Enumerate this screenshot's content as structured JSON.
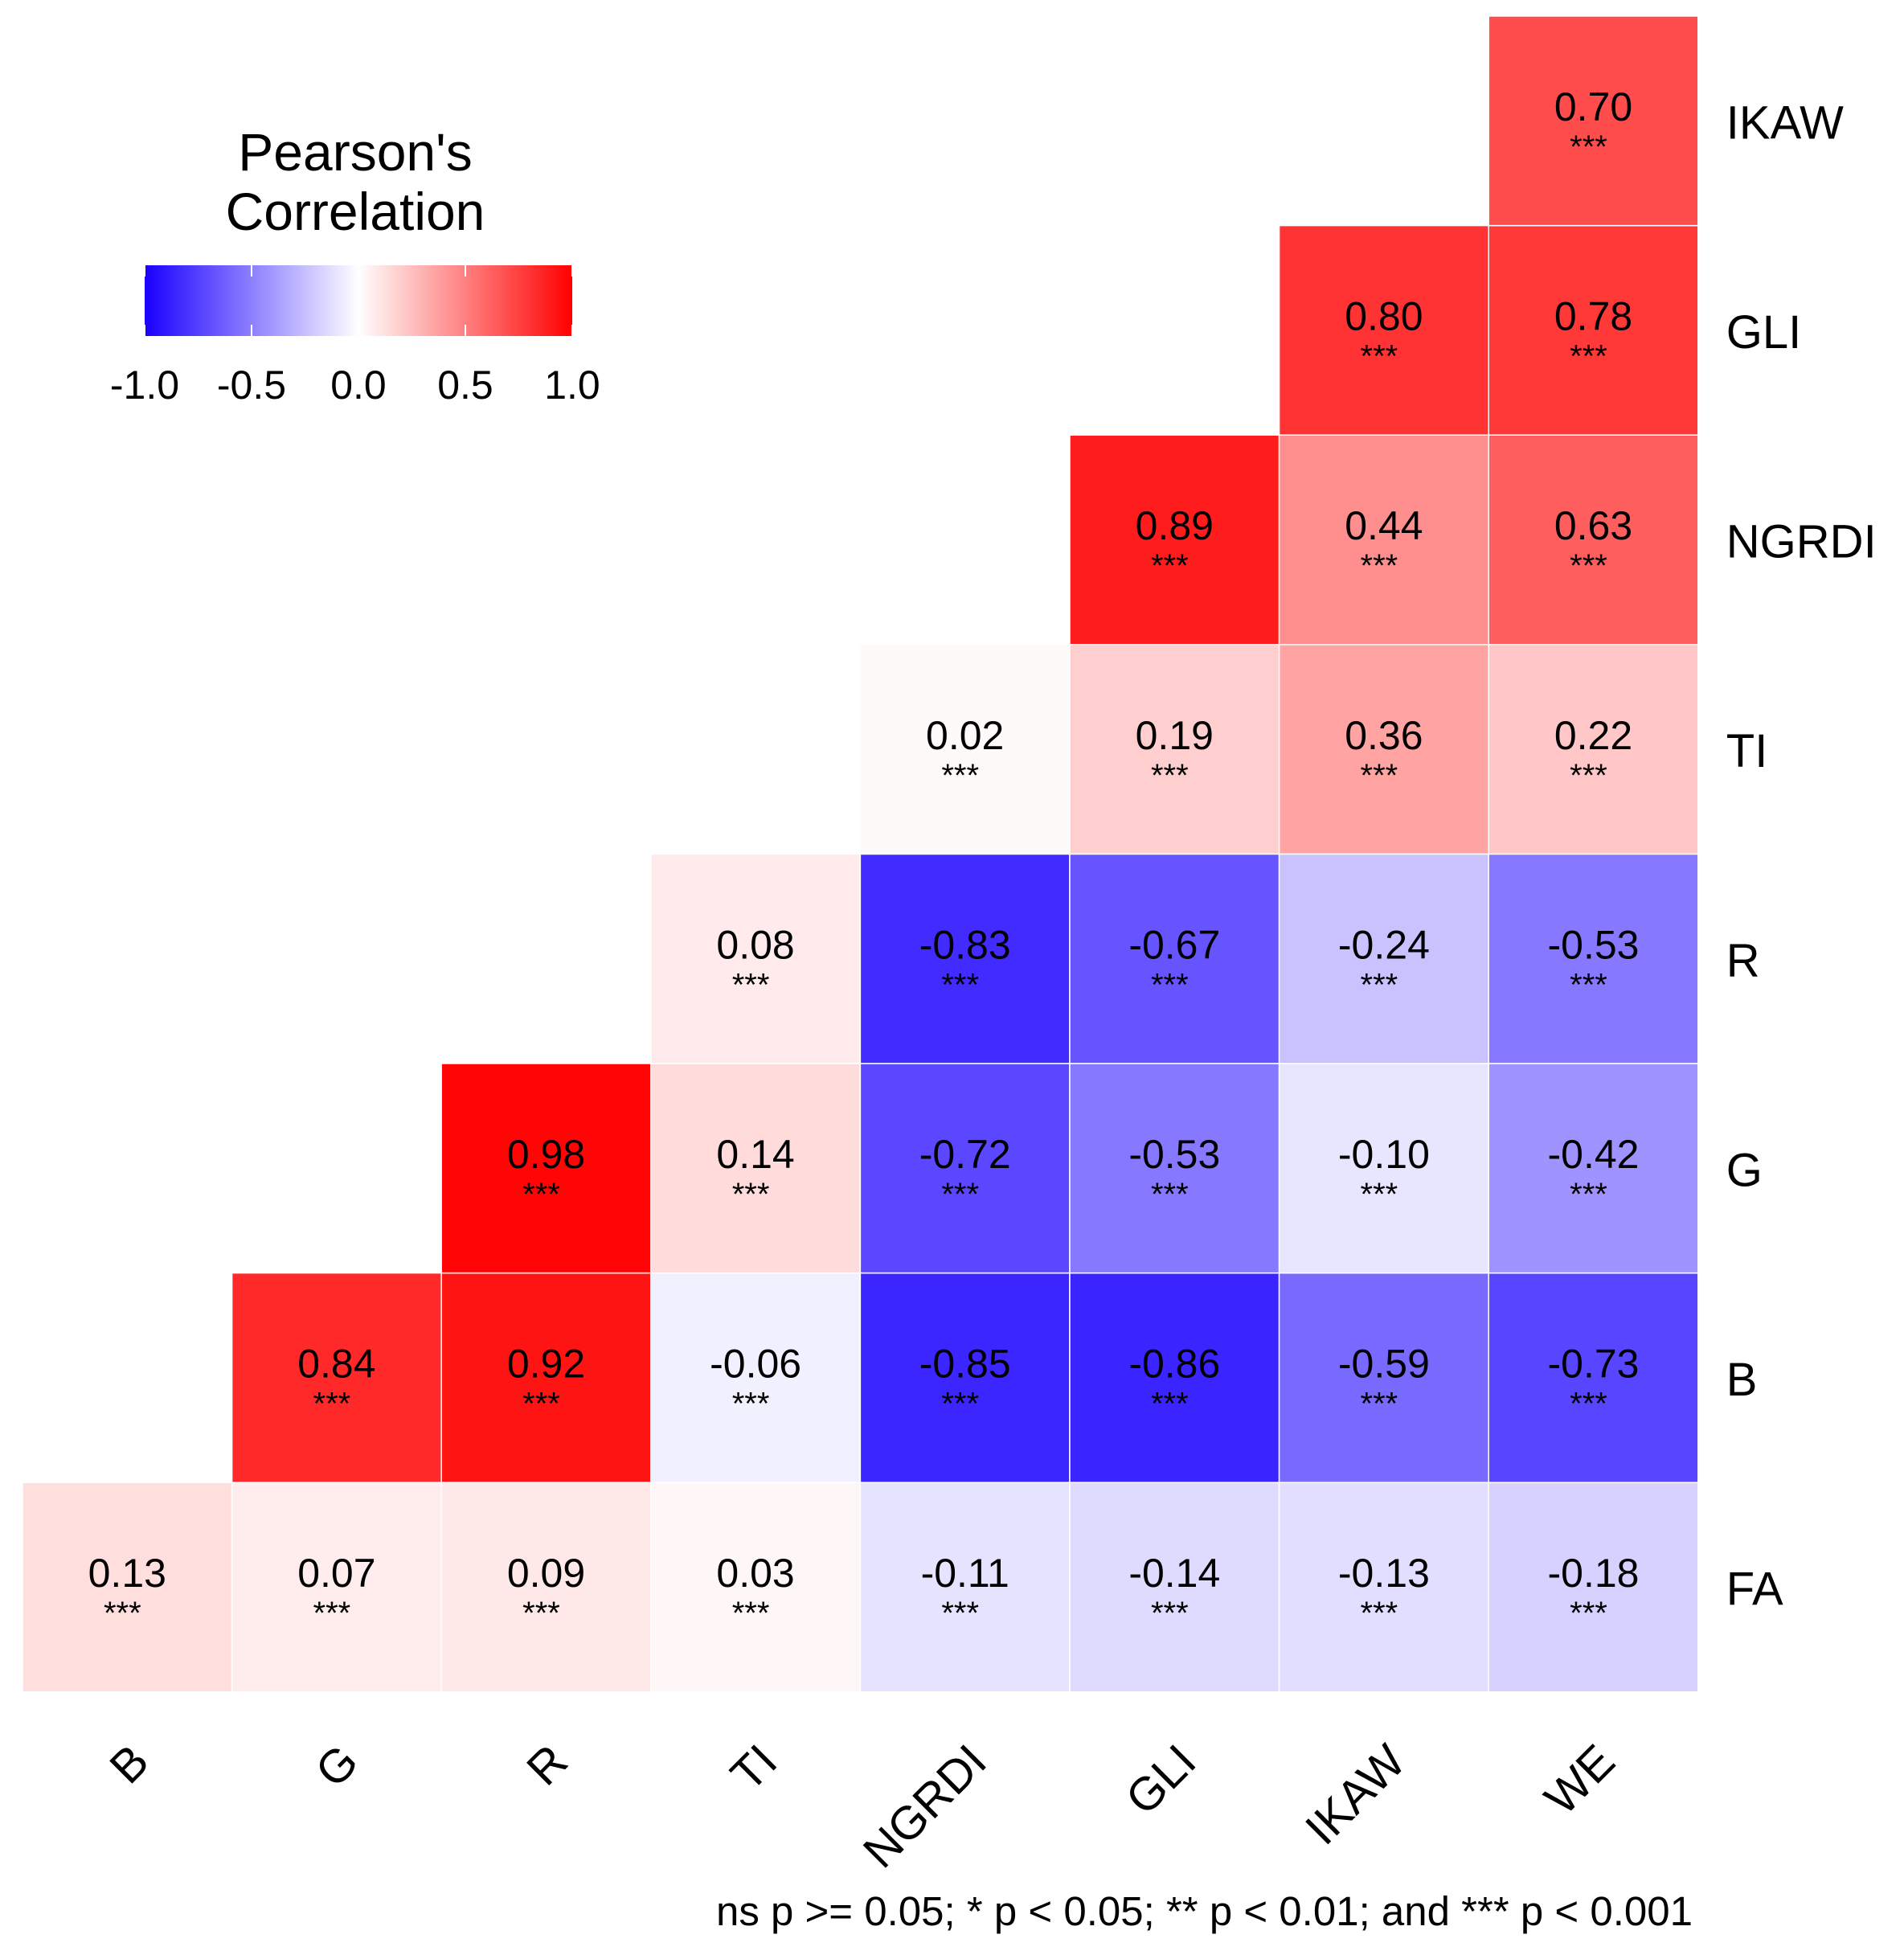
{
  "chart_data": {
    "type": "heatmap",
    "subtype": "lower-triangular correlation matrix",
    "x_labels": [
      "B",
      "G",
      "R",
      "TI",
      "NGRDI",
      "GLI",
      "IKAW",
      "WE"
    ],
    "y_labels": [
      "FA",
      "B",
      "G",
      "R",
      "TI",
      "NGRDI",
      "GLI",
      "IKAW"
    ],
    "cells": [
      {
        "x": "B",
        "y": "FA",
        "value": 0.13,
        "label": "0.13",
        "sig": "***"
      },
      {
        "x": "G",
        "y": "FA",
        "value": 0.07,
        "label": "0.07",
        "sig": "***"
      },
      {
        "x": "R",
        "y": "FA",
        "value": 0.09,
        "label": "0.09",
        "sig": "***"
      },
      {
        "x": "TI",
        "y": "FA",
        "value": 0.03,
        "label": "0.03",
        "sig": "***"
      },
      {
        "x": "NGRDI",
        "y": "FA",
        "value": -0.11,
        "label": "-0.11",
        "sig": "***"
      },
      {
        "x": "GLI",
        "y": "FA",
        "value": -0.14,
        "label": "-0.14",
        "sig": "***"
      },
      {
        "x": "IKAW",
        "y": "FA",
        "value": -0.13,
        "label": "-0.13",
        "sig": "***"
      },
      {
        "x": "WE",
        "y": "FA",
        "value": -0.18,
        "label": "-0.18",
        "sig": "***"
      },
      {
        "x": "G",
        "y": "B",
        "value": 0.84,
        "label": "0.84",
        "sig": "***"
      },
      {
        "x": "R",
        "y": "B",
        "value": 0.92,
        "label": "0.92",
        "sig": "***"
      },
      {
        "x": "TI",
        "y": "B",
        "value": -0.06,
        "label": "-0.06",
        "sig": "***"
      },
      {
        "x": "NGRDI",
        "y": "B",
        "value": -0.85,
        "label": "-0.85",
        "sig": "***"
      },
      {
        "x": "GLI",
        "y": "B",
        "value": -0.86,
        "label": "-0.86",
        "sig": "***"
      },
      {
        "x": "IKAW",
        "y": "B",
        "value": -0.59,
        "label": "-0.59",
        "sig": "***"
      },
      {
        "x": "WE",
        "y": "B",
        "value": -0.73,
        "label": "-0.73",
        "sig": "***"
      },
      {
        "x": "R",
        "y": "G",
        "value": 0.98,
        "label": "0.98",
        "sig": "***"
      },
      {
        "x": "TI",
        "y": "G",
        "value": 0.14,
        "label": "0.14",
        "sig": "***"
      },
      {
        "x": "NGRDI",
        "y": "G",
        "value": -0.72,
        "label": "-0.72",
        "sig": "***"
      },
      {
        "x": "GLI",
        "y": "G",
        "value": -0.53,
        "label": "-0.53",
        "sig": "***"
      },
      {
        "x": "IKAW",
        "y": "G",
        "value": -0.1,
        "label": "-0.10",
        "sig": "***"
      },
      {
        "x": "WE",
        "y": "G",
        "value": -0.42,
        "label": "-0.42",
        "sig": "***"
      },
      {
        "x": "TI",
        "y": "R",
        "value": 0.08,
        "label": "0.08",
        "sig": "***"
      },
      {
        "x": "NGRDI",
        "y": "R",
        "value": -0.83,
        "label": "-0.83",
        "sig": "***"
      },
      {
        "x": "GLI",
        "y": "R",
        "value": -0.67,
        "label": "-0.67",
        "sig": "***"
      },
      {
        "x": "IKAW",
        "y": "R",
        "value": -0.24,
        "label": "-0.24",
        "sig": "***"
      },
      {
        "x": "WE",
        "y": "R",
        "value": -0.53,
        "label": "-0.53",
        "sig": "***"
      },
      {
        "x": "NGRDI",
        "y": "TI",
        "value": 0.02,
        "label": "0.02",
        "sig": "***"
      },
      {
        "x": "GLI",
        "y": "TI",
        "value": 0.19,
        "label": "0.19",
        "sig": "***"
      },
      {
        "x": "IKAW",
        "y": "TI",
        "value": 0.36,
        "label": "0.36",
        "sig": "***"
      },
      {
        "x": "WE",
        "y": "TI",
        "value": 0.22,
        "label": "0.22",
        "sig": "***"
      },
      {
        "x": "GLI",
        "y": "NGRDI",
        "value": 0.89,
        "label": "0.89",
        "sig": "***"
      },
      {
        "x": "IKAW",
        "y": "NGRDI",
        "value": 0.44,
        "label": "0.44",
        "sig": "***"
      },
      {
        "x": "WE",
        "y": "NGRDI",
        "value": 0.63,
        "label": "0.63",
        "sig": "***"
      },
      {
        "x": "IKAW",
        "y": "GLI",
        "value": 0.8,
        "label": "0.80",
        "sig": "***"
      },
      {
        "x": "WE",
        "y": "GLI",
        "value": 0.78,
        "label": "0.78",
        "sig": "***"
      },
      {
        "x": "WE",
        "y": "IKAW",
        "value": 0.7,
        "label": "0.70",
        "sig": "***"
      }
    ],
    "legend": {
      "title_lines": [
        "Pearson's",
        "Correlation"
      ],
      "position": "top-left",
      "ticks": [
        -1.0,
        -0.5,
        0.0,
        0.5,
        1.0
      ],
      "tick_labels": [
        "-1.0",
        "-0.5",
        "0.0",
        "0.5",
        "1.0"
      ],
      "range": [
        -1,
        1
      ]
    },
    "colors": {
      "low": "#1a00ff",
      "mid": "#ffffff",
      "high": "#ff0000"
    },
    "footnote": "ns p >= 0.05; * p < 0.05; ** p < 0.01; and *** p < 0.001"
  }
}
